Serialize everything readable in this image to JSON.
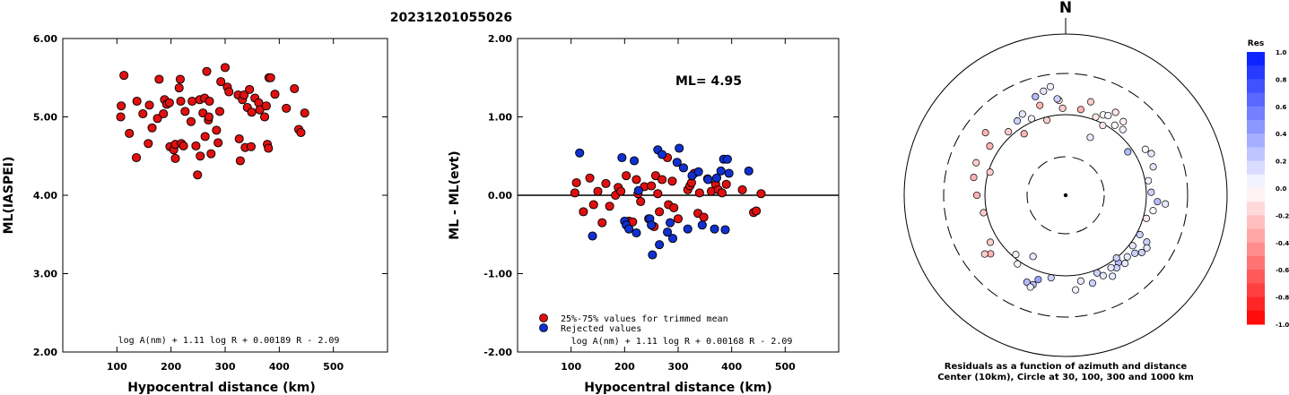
{
  "figure_title": "20231201055026",
  "chart_data": [
    {
      "type": "scatter",
      "id": "left",
      "title": "",
      "xlabel": "Hypocentral distance (km)",
      "ylabel": "ML(IASPEI)",
      "xlim": [
        0,
        600
      ],
      "ylim": [
        2.0,
        6.0
      ],
      "xticks": [
        "100",
        "200",
        "300",
        "400",
        "500"
      ],
      "yticks": [
        "2.00",
        "3.00",
        "4.00",
        "5.00",
        "6.00"
      ],
      "formula": "log A(nm) + 1.11 log R + 0.00189 R - 2.09",
      "series": [
        {
          "color": "#e01010",
          "points": [
            [
              113,
              5.53
            ],
            [
              108,
              5.14
            ],
            [
              107,
              5.0
            ],
            [
              123,
              4.79
            ],
            [
              137,
              5.2
            ],
            [
              136,
              4.48
            ],
            [
              148,
              5.04
            ],
            [
              158,
              4.66
            ],
            [
              160,
              5.15
            ],
            [
              165,
              4.86
            ],
            [
              175,
              4.98
            ],
            [
              178,
              5.48
            ],
            [
              186,
              5.04
            ],
            [
              188,
              5.22
            ],
            [
              192,
              5.16
            ],
            [
              197,
              5.18
            ],
            [
              198,
              4.62
            ],
            [
              205,
              4.58
            ],
            [
              208,
              4.65
            ],
            [
              208,
              4.47
            ],
            [
              215,
              5.37
            ],
            [
              217,
              5.48
            ],
            [
              218,
              5.2
            ],
            [
              219,
              4.66
            ],
            [
              223,
              4.63
            ],
            [
              226,
              5.07
            ],
            [
              237,
              4.94
            ],
            [
              239,
              5.2
            ],
            [
              246,
              4.63
            ],
            [
              249,
              4.26
            ],
            [
              253,
              5.22
            ],
            [
              254,
              4.5
            ],
            [
              259,
              5.05
            ],
            [
              262,
              5.24
            ],
            [
              263,
              4.75
            ],
            [
              266,
              5.58
            ],
            [
              269,
              4.96
            ],
            [
              270,
              5.0
            ],
            [
              271,
              5.2
            ],
            [
              274,
              4.53
            ],
            [
              284,
              4.83
            ],
            [
              287,
              4.67
            ],
            [
              290,
              5.07
            ],
            [
              292,
              5.45
            ],
            [
              300,
              5.63
            ],
            [
              304,
              5.38
            ],
            [
              307,
              5.32
            ],
            [
              324,
              5.28
            ],
            [
              326,
              4.72
            ],
            [
              328,
              4.44
            ],
            [
              332,
              5.22
            ],
            [
              335,
              5.28
            ],
            [
              337,
              4.61
            ],
            [
              341,
              5.12
            ],
            [
              345,
              5.35
            ],
            [
              348,
              4.62
            ],
            [
              349,
              5.06
            ],
            [
              355,
              5.24
            ],
            [
              362,
              5.18
            ],
            [
              364,
              5.09
            ],
            [
              373,
              5.0
            ],
            [
              376,
              5.14
            ],
            [
              378,
              4.65
            ],
            [
              380,
              4.6
            ],
            [
              381,
              5.5
            ],
            [
              384,
              5.5
            ],
            [
              392,
              5.29
            ],
            [
              413,
              5.11
            ],
            [
              428,
              5.36
            ],
            [
              436,
              4.84
            ],
            [
              440,
              4.8
            ],
            [
              447,
              5.05
            ]
          ]
        }
      ]
    },
    {
      "type": "scatter",
      "id": "middle",
      "title": "",
      "xlabel": "Hypocentral distance (km)",
      "ylabel": "ML - ML(evt)",
      "xlim": [
        0,
        600
      ],
      "ylim": [
        -2.0,
        2.0
      ],
      "xticks": [
        "100",
        "200",
        "300",
        "400",
        "500"
      ],
      "yticks": [
        "-2.00",
        "-1.00",
        "0.00",
        "1.00",
        "2.00"
      ],
      "annotation": "ML=  4.95",
      "formula": "log A(nm) + 1.11 log R + 0.00168 R - 2.09",
      "legend": [
        {
          "label": "25%-75% values for trimmed mean",
          "color": "#e01010"
        },
        {
          "label": "Rejected values",
          "color": "#1030d0"
        }
      ],
      "legend_position": "bottom-left",
      "series": [
        {
          "name": "25%-75% values for trimmed mean",
          "color": "#e01010",
          "points": [
            [
              107,
              0.03
            ],
            [
              110,
              0.16
            ],
            [
              123,
              -0.21
            ],
            [
              135,
              0.22
            ],
            [
              142,
              -0.12
            ],
            [
              150,
              0.05
            ],
            [
              158,
              -0.35
            ],
            [
              165,
              0.15
            ],
            [
              172,
              -0.14
            ],
            [
              183,
              0.0
            ],
            [
              188,
              0.1
            ],
            [
              193,
              0.05
            ],
            [
              203,
              0.25
            ],
            [
              208,
              -0.33
            ],
            [
              215,
              -0.34
            ],
            [
              222,
              0.2
            ],
            [
              225,
              0.02
            ],
            [
              230,
              -0.08
            ],
            [
              237,
              0.11
            ],
            [
              245,
              -0.3
            ],
            [
              250,
              0.12
            ],
            [
              255,
              -0.4
            ],
            [
              258,
              0.25
            ],
            [
              262,
              0.02
            ],
            [
              265,
              -0.21
            ],
            [
              270,
              0.2
            ],
            [
              280,
              0.48
            ],
            [
              282,
              -0.12
            ],
            [
              289,
              0.18
            ],
            [
              292,
              -0.16
            ],
            [
              300,
              -0.3
            ],
            [
              318,
              0.07
            ],
            [
              322,
              0.12
            ],
            [
              325,
              0.16
            ],
            [
              330,
              0.28
            ],
            [
              337,
              -0.23
            ],
            [
              340,
              0.03
            ],
            [
              348,
              -0.28
            ],
            [
              355,
              0.21
            ],
            [
              362,
              0.05
            ],
            [
              370,
              0.14
            ],
            [
              375,
              0.07
            ],
            [
              382,
              0.03
            ],
            [
              390,
              0.14
            ],
            [
              420,
              0.07
            ],
            [
              441,
              -0.22
            ],
            [
              446,
              -0.2
            ],
            [
              455,
              0.02
            ]
          ]
        },
        {
          "name": "Rejected values",
          "color": "#1030d0",
          "points": [
            [
              116,
              0.54
            ],
            [
              140,
              -0.52
            ],
            [
              195,
              0.48
            ],
            [
              200,
              -0.33
            ],
            [
              203,
              -0.38
            ],
            [
              208,
              -0.43
            ],
            [
              218,
              0.44
            ],
            [
              222,
              -0.48
            ],
            [
              226,
              0.06
            ],
            [
              247,
              -0.3
            ],
            [
              250,
              -0.38
            ],
            [
              252,
              -0.76
            ],
            [
              262,
              0.58
            ],
            [
              265,
              -0.63
            ],
            [
              270,
              0.52
            ],
            [
              280,
              -0.47
            ],
            [
              285,
              -0.35
            ],
            [
              290,
              -0.55
            ],
            [
              298,
              0.42
            ],
            [
              302,
              0.6
            ],
            [
              310,
              0.35
            ],
            [
              318,
              -0.43
            ],
            [
              326,
              0.25
            ],
            [
              338,
              0.3
            ],
            [
              345,
              -0.38
            ],
            [
              356,
              0.2
            ],
            [
              368,
              -0.43
            ],
            [
              372,
              0.22
            ],
            [
              380,
              0.31
            ],
            [
              385,
              0.46
            ],
            [
              388,
              -0.44
            ],
            [
              392,
              0.46
            ],
            [
              395,
              0.28
            ],
            [
              432,
              0.31
            ]
          ]
        }
      ]
    },
    {
      "type": "polar-scatter",
      "id": "right",
      "north_label": "N",
      "caption_line1": "Residuals as a function of azimuth and distance",
      "caption_line2": "Center (10km), Circle at 30, 100, 300 and 1000 km",
      "rings_km": [
        30,
        100,
        300,
        1000
      ],
      "colorbar": {
        "title": "Res",
        "ticks": [
          "1.0",
          "0.8",
          "0.6",
          "0.4",
          "0.2",
          "0.0",
          "-0.2",
          "-0.4",
          "-0.6",
          "-0.8",
          "-1.0"
        ],
        "max_color": "#0018ff",
        "min_color": "#ff0000"
      },
      "points": [
        [
          -34,
          0.46,
          -0.3
        ],
        [
          -16,
          0.58,
          -0.3
        ],
        [
          -14,
          0.48,
          -0.2
        ],
        [
          -4,
          0.59,
          -0.1
        ],
        [
          -2,
          0.54,
          -0.2
        ],
        [
          10,
          0.54,
          -0.3
        ],
        [
          15,
          0.6,
          -0.2
        ],
        [
          21,
          0.52,
          -0.1
        ],
        [
          25,
          0.55,
          0.0
        ],
        [
          28,
          0.56,
          0.05
        ],
        [
          31,
          0.6,
          -0.1
        ],
        [
          28,
          0.49,
          -0.1
        ],
        [
          35,
          0.53,
          0.0
        ],
        [
          38,
          0.58,
          -0.05
        ],
        [
          41,
          0.54,
          0.05
        ],
        [
          23,
          0.39,
          0.1
        ],
        [
          55,
          0.47,
          0.3
        ],
        [
          60,
          0.57,
          0.0
        ],
        [
          64,
          0.59,
          0.1
        ],
        [
          72,
          0.57,
          0.1
        ],
        [
          80,
          0.52,
          0.05
        ],
        [
          88,
          0.53,
          0.2
        ],
        [
          94,
          0.57,
          0.3
        ],
        [
          100,
          0.55,
          0.0
        ],
        [
          95,
          0.62,
          0.1
        ],
        [
          106,
          0.52,
          -0.1
        ],
        [
          118,
          0.52,
          0.2
        ],
        [
          120,
          0.58,
          0.2
        ],
        [
          123,
          0.6,
          0.1
        ],
        [
          127,
          0.59,
          0.2
        ],
        [
          130,
          0.56,
          0.2
        ],
        [
          127,
          0.52,
          0.1
        ],
        [
          135,
          0.54,
          0.1
        ],
        [
          139,
          0.56,
          0.1
        ],
        [
          142,
          0.53,
          0.3
        ],
        [
          145,
          0.55,
          0.2
        ],
        [
          141,
          0.5,
          0.2
        ],
        [
          148,
          0.53,
          0.1
        ],
        [
          150,
          0.58,
          0.1
        ],
        [
          155,
          0.55,
          0.1
        ],
        [
          158,
          0.52,
          0.2
        ],
        [
          163,
          0.57,
          0.2
        ],
        [
          170,
          0.54,
          0.1
        ],
        [
          174,
          0.59,
          0.05
        ],
        [
          190,
          0.52,
          0.2
        ],
        [
          198,
          0.55,
          0.4
        ],
        [
          200,
          0.59,
          0.3
        ],
        [
          204,
          0.59,
          0.3
        ],
        [
          201,
          0.61,
          0.05
        ],
        [
          208,
          0.43,
          0.1
        ],
        [
          220,
          0.48,
          0.05
        ],
        [
          215,
          0.52,
          0.05
        ],
        [
          232,
          0.59,
          -0.3
        ],
        [
          234,
          0.62,
          -0.2
        ],
        [
          238,
          0.55,
          -0.2
        ],
        [
          258,
          0.52,
          -0.2
        ],
        [
          270,
          0.55,
          -0.3
        ],
        [
          281,
          0.58,
          -0.3
        ],
        [
          290,
          0.59,
          -0.2
        ],
        [
          287,
          0.49,
          -0.2
        ],
        [
          303,
          0.56,
          -0.3
        ],
        [
          308,
          0.63,
          -0.3
        ],
        [
          318,
          0.53,
          -0.2
        ],
        [
          327,
          0.55,
          0.2
        ],
        [
          332,
          0.57,
          0.1
        ],
        [
          336,
          0.52,
          0.05
        ],
        [
          343,
          0.64,
          0.3
        ],
        [
          348,
          0.66,
          0.1
        ],
        [
          352,
          0.68,
          0.05
        ],
        [
          355,
          0.6,
          0.2
        ]
      ]
    }
  ]
}
